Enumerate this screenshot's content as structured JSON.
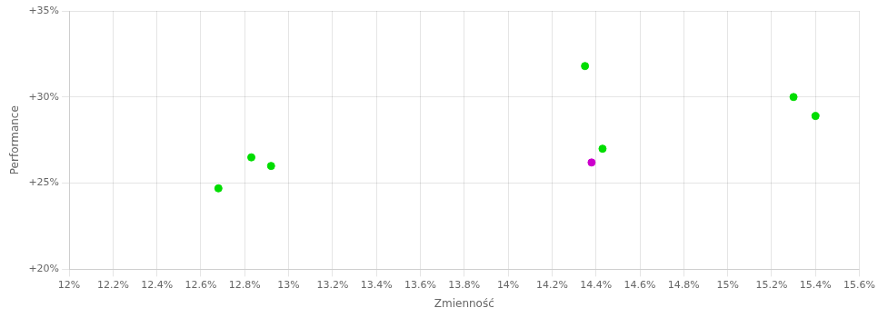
{
  "chart_data": {
    "type": "scatter",
    "xlabel": "Zmienność",
    "ylabel": "Performance",
    "series": [
      {
        "color": "#00dd00",
        "x": [
          0.1268,
          0.1283,
          0.1292,
          0.1435,
          0.1443,
          0.153,
          0.154
        ],
        "values": [
          0.247,
          0.265,
          0.26,
          0.318,
          0.27,
          0.3,
          0.289
        ]
      },
      {
        "color": "#cc00cc",
        "x": [
          0.1438
        ],
        "values": [
          0.262
        ]
      }
    ],
    "xlim": [
      0.12,
      0.156
    ],
    "ylim": [
      0.2,
      0.35
    ],
    "xticks": [
      {
        "value": 0.12,
        "label": "12%"
      },
      {
        "value": 0.122,
        "label": "12.2%"
      },
      {
        "value": 0.124,
        "label": "12.4%"
      },
      {
        "value": 0.126,
        "label": "12.6%"
      },
      {
        "value": 0.128,
        "label": "12.8%"
      },
      {
        "value": 0.13,
        "label": "13%"
      },
      {
        "value": 0.132,
        "label": "13.2%"
      },
      {
        "value": 0.134,
        "label": "13.4%"
      },
      {
        "value": 0.136,
        "label": "13.6%"
      },
      {
        "value": 0.138,
        "label": "13.8%"
      },
      {
        "value": 0.14,
        "label": "14%"
      },
      {
        "value": 0.142,
        "label": "14.2%"
      },
      {
        "value": 0.144,
        "label": "14.4%"
      },
      {
        "value": 0.146,
        "label": "14.6%"
      },
      {
        "value": 0.148,
        "label": "14.8%"
      },
      {
        "value": 0.15,
        "label": "15%"
      },
      {
        "value": 0.152,
        "label": "15.2%"
      },
      {
        "value": 0.154,
        "label": "15.4%"
      },
      {
        "value": 0.156,
        "label": "15.6%"
      }
    ],
    "yticks": [
      {
        "value": 0.2,
        "label": "+20%"
      },
      {
        "value": 0.25,
        "label": "+25%"
      },
      {
        "value": 0.3,
        "label": "+30%"
      },
      {
        "value": 0.35,
        "label": "+35%"
      }
    ],
    "grid": true
  }
}
